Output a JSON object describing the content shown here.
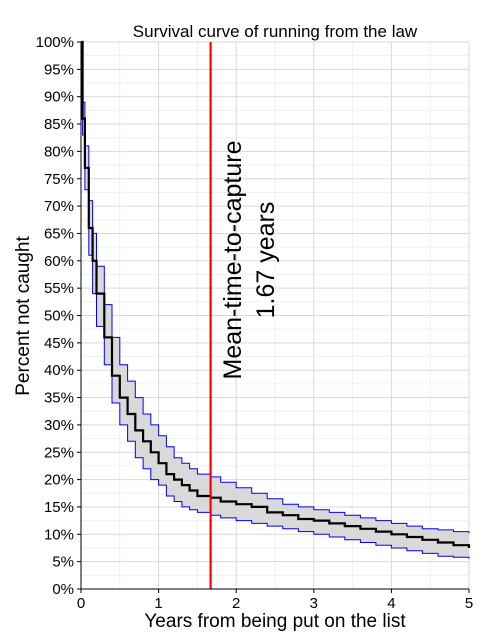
{
  "chart_data": {
    "type": "line",
    "title": "Survival curve of running from the law",
    "xlabel": "Years from being put on the list",
    "ylabel": "Percent not caught",
    "xlim": [
      0,
      5
    ],
    "ylim": [
      0,
      100
    ],
    "x_ticks": [
      0,
      1,
      2,
      3,
      4,
      5
    ],
    "y_ticks": [
      0,
      5,
      10,
      15,
      20,
      25,
      30,
      35,
      40,
      45,
      50,
      55,
      60,
      65,
      70,
      75,
      80,
      85,
      90,
      95,
      100
    ],
    "y_tick_suffix": "%",
    "grid": true,
    "series": [
      {
        "role": "estimate",
        "color": "#000000",
        "x": [
          0,
          0.02,
          0.05,
          0.1,
          0.15,
          0.2,
          0.3,
          0.4,
          0.5,
          0.6,
          0.7,
          0.8,
          0.9,
          1.0,
          1.1,
          1.2,
          1.3,
          1.4,
          1.5,
          1.67,
          1.8,
          2.0,
          2.2,
          2.4,
          2.6,
          2.8,
          3.0,
          3.2,
          3.4,
          3.6,
          3.8,
          4.0,
          4.2,
          4.4,
          4.6,
          4.8,
          5.0
        ],
        "y": [
          100,
          86,
          77,
          66,
          60,
          54,
          46,
          39,
          35,
          32,
          29,
          27,
          25,
          23,
          21,
          20,
          19,
          18,
          17,
          16.7,
          16,
          15.5,
          15,
          14,
          13.5,
          12.8,
          12.5,
          12,
          11.5,
          11,
          10.5,
          10,
          9.5,
          9,
          8.5,
          8,
          7.5
        ]
      },
      {
        "role": "upper-bound",
        "color": "#0000ff",
        "x": [
          0,
          0.02,
          0.05,
          0.1,
          0.15,
          0.2,
          0.3,
          0.4,
          0.5,
          0.6,
          0.7,
          0.8,
          0.9,
          1.0,
          1.1,
          1.2,
          1.3,
          1.4,
          1.5,
          1.67,
          1.8,
          2.0,
          2.2,
          2.4,
          2.6,
          2.8,
          3.0,
          3.2,
          3.4,
          3.6,
          3.8,
          4.0,
          4.2,
          4.4,
          4.6,
          4.8,
          5.0
        ],
        "y": [
          100,
          89,
          81,
          71,
          65,
          59,
          52,
          46,
          41,
          38,
          35,
          32,
          30,
          28,
          26,
          24,
          23,
          22,
          21,
          20.5,
          19.5,
          18.5,
          17.5,
          16.5,
          15.5,
          15,
          14.5,
          14,
          13.5,
          13,
          12.5,
          12,
          11.5,
          11,
          10.8,
          10.5,
          10.2
        ]
      },
      {
        "role": "lower-bound",
        "color": "#0000ff",
        "x": [
          0,
          0.02,
          0.05,
          0.1,
          0.15,
          0.2,
          0.3,
          0.4,
          0.5,
          0.6,
          0.7,
          0.8,
          0.9,
          1.0,
          1.1,
          1.2,
          1.3,
          1.4,
          1.5,
          1.67,
          1.8,
          2.0,
          2.2,
          2.4,
          2.6,
          2.8,
          3.0,
          3.2,
          3.4,
          3.6,
          3.8,
          4.0,
          4.2,
          4.4,
          4.6,
          4.8,
          5.0
        ],
        "y": [
          100,
          83,
          73,
          61,
          54,
          48,
          41,
          34,
          30,
          27,
          24,
          22,
          20,
          19,
          17,
          16,
          15,
          14.5,
          14,
          13.5,
          13,
          12.5,
          12,
          11.5,
          11,
          10.5,
          10,
          9.5,
          9,
          8.5,
          8,
          7.5,
          7,
          6.5,
          6,
          5.8,
          5.5
        ]
      }
    ],
    "band_fill_color": "#d9d9d9",
    "vline": {
      "x": 1.67,
      "color": "#ff0000"
    },
    "annotation": {
      "line1": "Mean-time-to-capture",
      "line2": "1.67 years"
    }
  }
}
